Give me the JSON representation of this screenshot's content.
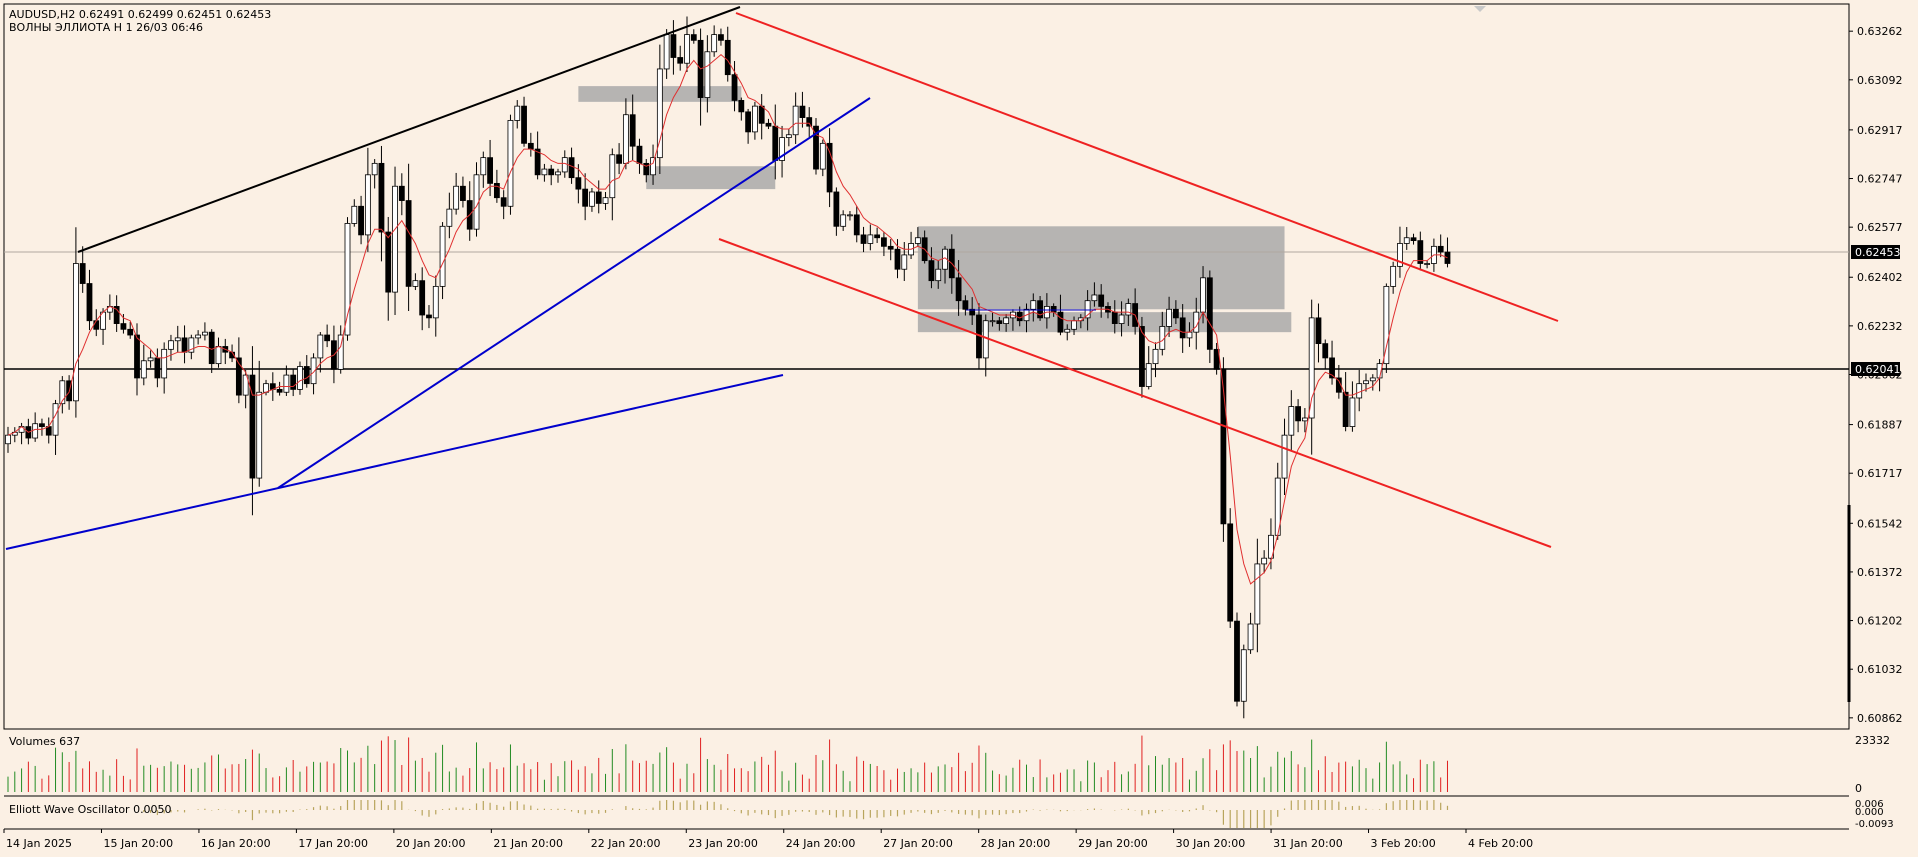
{
  "header": {
    "symbol_line": "AUDUSD,H2  0.62491 0.62499 0.62451 0.62453",
    "indicator_line": "ВОЛНЫ ЭЛЛИОТА H 1 26/03 06:46"
  },
  "price_axis": {
    "ticks": [
      "0.63262",
      "0.63092",
      "0.62917",
      "0.62747",
      "0.62577",
      "0.62402",
      "0.62232",
      "0.62062",
      "0.61887",
      "0.61717",
      "0.61542",
      "0.61372",
      "0.61202",
      "0.61032",
      "0.60862"
    ],
    "current_price_label": "0.62453",
    "level_price_label": "0.62041"
  },
  "time_axis": {
    "labels": [
      "14 Jan 2025",
      "15 Jan 20:00",
      "16 Jan 20:00",
      "17 Jan 20:00",
      "20 Jan 20:00",
      "21 Jan 20:00",
      "22 Jan 20:00",
      "23 Jan 20:00",
      "24 Jan 20:00",
      "27 Jan 20:00",
      "28 Jan 20:00",
      "29 Jan 20:00",
      "30 Jan 20:00",
      "31 Jan 20:00",
      "3 Feb 20:00",
      "4 Feb 20:00"
    ]
  },
  "volumes_panel": {
    "title": "Volumes 637",
    "axis_top": "23332",
    "axis_bottom": "0"
  },
  "oscillator_panel": {
    "title": "Elliott Wave Oscillator 0.0050",
    "axis_top": "0.006",
    "axis_mid": "0.000",
    "axis_bottom": "-0.0093"
  },
  "colors": {
    "chart_background": "#fbf0e4",
    "bull_candle": "#ffffff",
    "bear_candle": "#000000",
    "moving_average": "#e03030",
    "channel_lines": "#ee2222",
    "trend_lines": "#0000cc",
    "zones": "#a9a9a9",
    "volume_up": "#228b22",
    "volume_down": "#e02020",
    "oscillator": "#b8a45c"
  },
  "chart_data": {
    "type": "candlestick",
    "symbol": "AUDUSD",
    "timeframe": "H2",
    "ohlc_last": {
      "open": 0.62491,
      "high": 0.62499,
      "low": 0.62451,
      "close": 0.62453
    },
    "y_range": [
      0.6083,
      0.6335
    ],
    "horizontal_level": 0.62041,
    "closes": [
      0.6185,
      0.6186,
      0.6188,
      0.6184,
      0.6189,
      0.6188,
      0.6185,
      0.6196,
      0.6204,
      0.6197,
      0.6245,
      0.6238,
      0.6225,
      0.6222,
      0.6228,
      0.623,
      0.6224,
      0.6222,
      0.622,
      0.6205,
      0.6211,
      0.6212,
      0.6205,
      0.6215,
      0.6218,
      0.6219,
      0.6214,
      0.6219,
      0.622,
      0.6221,
      0.621,
      0.6216,
      0.6214,
      0.6212,
      0.6199,
      0.6206,
      0.617,
      0.62,
      0.6203,
      0.6201,
      0.62,
      0.6206,
      0.6201,
      0.6209,
      0.6203,
      0.6212,
      0.622,
      0.6218,
      0.6208,
      0.622,
      0.6259,
      0.6265,
      0.6255,
      0.6276,
      0.628,
      0.6256,
      0.6235,
      0.6272,
      0.6267,
      0.6237,
      0.6239,
      0.6227,
      0.6226,
      0.6237,
      0.6258,
      0.6264,
      0.6272,
      0.6267,
      0.6257,
      0.6276,
      0.6282,
      0.6273,
      0.6268,
      0.6265,
      0.6295,
      0.63,
      0.6287,
      0.6285,
      0.6276,
      0.6278,
      0.6276,
      0.6277,
      0.6282,
      0.6275,
      0.6271,
      0.6265,
      0.627,
      0.6266,
      0.6268,
      0.6283,
      0.628,
      0.6297,
      0.6286,
      0.628,
      0.6276,
      0.6282,
      0.6313,
      0.6325,
      0.6317,
      0.6315,
      0.6325,
      0.6323,
      0.6303,
      0.6319,
      0.6325,
      0.6323,
      0.6311,
      0.6302,
      0.6298,
      0.6291,
      0.63,
      0.6294,
      0.6293,
      0.6281,
      0.6289,
      0.629,
      0.63,
      0.6296,
      0.6293,
      0.6278,
      0.6287,
      0.627,
      0.6258,
      0.6262,
      0.6262,
      0.6255,
      0.6252,
      0.6255,
      0.6254,
      0.6251,
      0.625,
      0.6243,
      0.6248,
      0.6252,
      0.6254,
      0.6246,
      0.6239,
      0.6243,
      0.625,
      0.624,
      0.6232,
      0.6229,
      0.6227,
      0.6212,
      0.6225,
      0.6225,
      0.6224,
      0.6226,
      0.6228,
      0.6225,
      0.6229,
      0.6232,
      0.6226,
      0.623,
      0.6228,
      0.6221,
      0.6222,
      0.6225,
      0.6226,
      0.6232,
      0.6234,
      0.623,
      0.6228,
      0.6224,
      0.6227,
      0.6231,
      0.6223,
      0.6202,
      0.621,
      0.6215,
      0.6223,
      0.6229,
      0.6226,
      0.6219,
      0.6221,
      0.6228,
      0.624,
      0.6215,
      0.6208,
      0.6154,
      0.612,
      0.6092,
      0.611,
      0.6119,
      0.614,
      0.6142,
      0.615,
      0.617,
      0.6185,
      0.6195,
      0.619,
      0.6191,
      0.6226,
      0.6217,
      0.6212,
      0.6205,
      0.62,
      0.6188,
      0.6198,
      0.6203,
      0.6204,
      0.6205,
      0.621,
      0.6237,
      0.6244,
      0.6252,
      0.6254,
      0.6253,
      0.6245,
      0.6245,
      0.6251,
      0.6249,
      0.6245
    ],
    "moving_average": [
      0.6185,
      0.6186,
      0.6188,
      0.6186,
      0.6187,
      0.6187,
      0.6188,
      0.6192,
      0.6197,
      0.62,
      0.621,
      0.6215,
      0.6221,
      0.6225,
      0.6228,
      0.623,
      0.6229,
      0.6226,
      0.6225,
      0.6219,
      0.6217,
      0.6215,
      0.6212,
      0.6212,
      0.6213,
      0.6214,
      0.6214,
      0.6215,
      0.6216,
      0.6216,
      0.6215,
      0.6216,
      0.6215,
      0.6214,
      0.621,
      0.6207,
      0.6199,
      0.6199,
      0.62,
      0.6201,
      0.6202,
      0.6202,
      0.6202,
      0.6204,
      0.6205,
      0.6207,
      0.621,
      0.6212,
      0.6213,
      0.6216,
      0.6227,
      0.6236,
      0.6244,
      0.6252,
      0.6257,
      0.6257,
      0.6254,
      0.6257,
      0.626,
      0.6256,
      0.6252,
      0.6246,
      0.6241,
      0.624,
      0.6245,
      0.625,
      0.6256,
      0.626,
      0.6262,
      0.6265,
      0.627,
      0.6272,
      0.6272,
      0.6271,
      0.6277,
      0.6282,
      0.6285,
      0.6285,
      0.6284,
      0.6283,
      0.6281,
      0.628,
      0.628,
      0.6279,
      0.6278,
      0.6275,
      0.6273,
      0.6271,
      0.6271,
      0.6274,
      0.6275,
      0.628,
      0.6281,
      0.628,
      0.6279,
      0.628,
      0.6288,
      0.6297,
      0.6303,
      0.6307,
      0.6313,
      0.6316,
      0.6313,
      0.6314,
      0.6316,
      0.6318,
      0.6316,
      0.6312,
      0.6308,
      0.6303,
      0.6302,
      0.63,
      0.6298,
      0.6293,
      0.6292,
      0.6292,
      0.6294,
      0.6294,
      0.6294,
      0.629,
      0.6289,
      0.6284,
      0.6277,
      0.6272,
      0.6269,
      0.6265,
      0.6261,
      0.6259,
      0.6258,
      0.6256,
      0.6254,
      0.6251,
      0.625,
      0.625,
      0.6251,
      0.625,
      0.6247,
      0.6246,
      0.6247,
      0.6245,
      0.6242,
      0.6239,
      0.6236,
      0.623,
      0.6229,
      0.6228,
      0.6227,
      0.6227,
      0.6227,
      0.6226,
      0.6227,
      0.6228,
      0.6227,
      0.6228,
      0.6228,
      0.6226,
      0.6225,
      0.6225,
      0.6225,
      0.6227,
      0.6229,
      0.6229,
      0.6229,
      0.6228,
      0.6228,
      0.6228,
      0.6227,
      0.6221,
      0.6218,
      0.6217,
      0.6218,
      0.6221,
      0.6222,
      0.6221,
      0.6221,
      0.6223,
      0.6228,
      0.6224,
      0.622,
      0.6201,
      0.6178,
      0.6152,
      0.614,
      0.6133,
      0.6135,
      0.6137,
      0.6141,
      0.615,
      0.6162,
      0.6174,
      0.618,
      0.6184,
      0.6198,
      0.6204,
      0.6207,
      0.6206,
      0.6204,
      0.6199,
      0.6199,
      0.62,
      0.6201,
      0.6202,
      0.6205,
      0.6216,
      0.6226,
      0.6235,
      0.6242,
      0.6246,
      0.6246,
      0.6246,
      0.6248,
      0.6248,
      0.6247
    ],
    "zones": [
      {
        "from_bar": 84,
        "to_bar": 108,
        "top": 0.6307,
        "bottom": 0.63015
      },
      {
        "from_bar": 94,
        "to_bar": 113,
        "top": 0.6279,
        "bottom": 0.6271
      },
      {
        "from_bar": 134,
        "to_bar": 188,
        "top": 0.6258,
        "bottom": 0.6229
      },
      {
        "from_bar": 134,
        "to_bar": 189,
        "top": 0.6228,
        "bottom": 0.6221
      }
    ]
  }
}
